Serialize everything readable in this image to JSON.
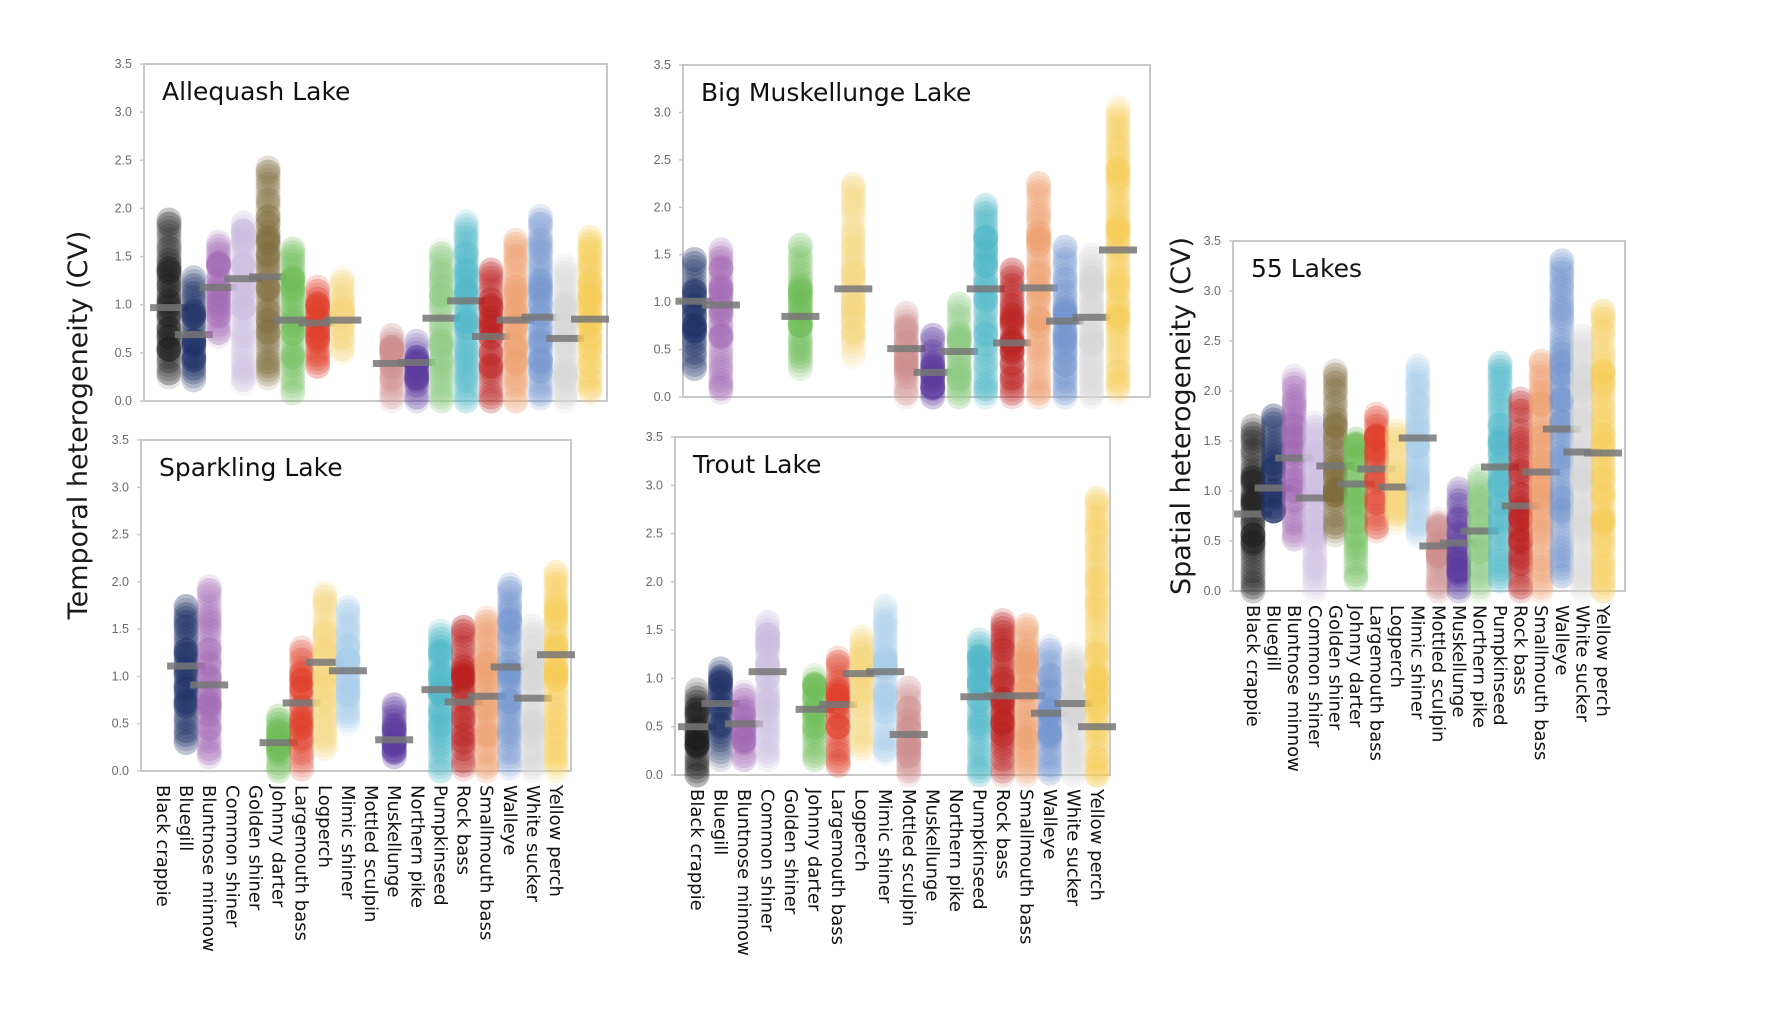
{
  "chart_data": [
    {
      "type": "scatter",
      "subtype": "strip-plot-with-mean-bars",
      "title": "Allequash Lake",
      "ylabel": "Temporal heterogeneity (CV)",
      "ylim": [
        0,
        3.5
      ],
      "yticks": [
        "0.0",
        "0.5",
        "1.0",
        "1.5",
        "2.0",
        "2.5",
        "3.0",
        "3.5"
      ],
      "categories": [
        "Black crappie",
        "Bluegill",
        "Bluntnose minnow",
        "Common shiner",
        "Golden shiner",
        "Johnny darter",
        "Largemouth bass",
        "Logperch",
        "Mimic shiner",
        "Mottled sculpin",
        "Muskellunge",
        "Northern pike",
        "Pumpkinseed",
        "Rock bass",
        "Smallmouth bass",
        "Walleye",
        "White sucker",
        "Yellow perch"
      ],
      "series": [
        {
          "name": "Black crappie",
          "min": 0.25,
          "max": 1.88,
          "mean": 0.97
        },
        {
          "name": "Bluegill",
          "min": 0.22,
          "max": 1.28,
          "mean": 0.69
        },
        {
          "name": "Bluntnose minnow",
          "min": 0.67,
          "max": 1.65,
          "mean": 1.18
        },
        {
          "name": "Common shiner",
          "min": 0.18,
          "max": 1.85,
          "mean": 1.27
        },
        {
          "name": "Golden shiner",
          "min": 0.24,
          "max": 2.42,
          "mean": 1.29
        },
        {
          "name": "Johnny darter",
          "min": 0.08,
          "max": 1.58,
          "mean": 0.84
        },
        {
          "name": "Largemouth bass",
          "min": 0.36,
          "max": 1.18,
          "mean": 0.81
        },
        {
          "name": "Logperch",
          "min": 0.5,
          "max": 1.28,
          "mean": 0.84
        },
        {
          "name": "Mimic shiner",
          "min": null,
          "max": null,
          "mean": null
        },
        {
          "name": "Mottled sculpin",
          "min": 0.0,
          "max": 0.68,
          "mean": 0.39
        },
        {
          "name": "Muskellunge",
          "min": 0.0,
          "max": 0.62,
          "mean": 0.4
        },
        {
          "name": "Northern pike",
          "min": 0.0,
          "max": 1.57,
          "mean": 0.86
        },
        {
          "name": "Pumpkinseed",
          "min": 0.0,
          "max": 1.86,
          "mean": 1.04
        },
        {
          "name": "Rock bass",
          "min": 0.0,
          "max": 1.36,
          "mean": 0.67
        },
        {
          "name": "Smallmouth bass",
          "min": 0.0,
          "max": 1.67,
          "mean": 0.84
        },
        {
          "name": "Walleye",
          "min": 0.03,
          "max": 1.92,
          "mean": 0.87
        },
        {
          "name": "White sucker",
          "min": 0.0,
          "max": 1.41,
          "mean": 0.65
        },
        {
          "name": "Yellow perch",
          "min": 0.1,
          "max": 1.7,
          "mean": 0.85
        }
      ]
    },
    {
      "type": "scatter",
      "subtype": "strip-plot-with-mean-bars",
      "title": "Big Muskellunge Lake",
      "ylim": [
        0,
        3.5
      ],
      "yticks": [
        "0.0",
        "0.5",
        "1.0",
        "1.5",
        "2.0",
        "2.5",
        "3.0",
        "3.5"
      ],
      "categories": [
        "Black crappie",
        "Bluegill",
        "Bluntnose minnow",
        "Common shiner",
        "Golden shiner",
        "Johnny darter",
        "Largemouth bass",
        "Logperch",
        "Mimic shiner",
        "Mottled sculpin",
        "Muskellunge",
        "Northern pike",
        "Pumpkinseed",
        "Rock bass",
        "Smallmouth bass",
        "Walleye",
        "White sucker",
        "Yellow perch"
      ],
      "series": [
        {
          "name": "Black crappie",
          "min": null,
          "max": null,
          "mean": null
        },
        {
          "name": "Bluegill",
          "min": 0.3,
          "max": 1.45,
          "mean": 1.01
        },
        {
          "name": "Bluntnose minnow",
          "min": 0.05,
          "max": 1.55,
          "mean": 0.97
        },
        {
          "name": "Common shiner",
          "min": null,
          "max": null,
          "mean": null
        },
        {
          "name": "Golden shiner",
          "min": null,
          "max": null,
          "mean": null
        },
        {
          "name": "Johnny darter",
          "min": 0.3,
          "max": 1.6,
          "mean": 0.85
        },
        {
          "name": "Largemouth bass",
          "min": null,
          "max": null,
          "mean": null
        },
        {
          "name": "Logperch",
          "min": 0.42,
          "max": 2.24,
          "mean": 1.14
        },
        {
          "name": "Mimic shiner",
          "min": null,
          "max": null,
          "mean": null
        },
        {
          "name": "Mottled sculpin",
          "min": 0.0,
          "max": 0.88,
          "mean": 0.51
        },
        {
          "name": "Muskellunge",
          "min": 0.0,
          "max": 0.65,
          "mean": 0.26
        },
        {
          "name": "Northern pike",
          "min": 0.0,
          "max": 0.98,
          "mean": 0.48
        },
        {
          "name": "Pumpkinseed",
          "min": 0.0,
          "max": 2.02,
          "mean": 1.14
        },
        {
          "name": "Rock bass",
          "min": 0.0,
          "max": 1.34,
          "mean": 0.57
        },
        {
          "name": "Smallmouth bass",
          "min": 0.0,
          "max": 2.25,
          "mean": 1.15
        },
        {
          "name": "Walleye",
          "min": 0.0,
          "max": 1.58,
          "mean": 0.8
        },
        {
          "name": "White sucker",
          "min": 0.0,
          "max": 1.5,
          "mean": 0.84
        },
        {
          "name": "Yellow perch",
          "min": 0.05,
          "max": 3.05,
          "mean": 1.55
        }
      ]
    },
    {
      "type": "scatter",
      "subtype": "strip-plot-with-mean-bars",
      "title": "Sparkling Lake",
      "ylim": [
        0,
        3.5
      ],
      "yticks": [
        "0.0",
        "0.5",
        "1.0",
        "1.5",
        "2.0",
        "2.5",
        "3.0",
        "3.5"
      ],
      "categories": [
        "Black crappie",
        "Bluegill",
        "Bluntnose minnow",
        "Common shiner",
        "Golden shiner",
        "Johnny darter",
        "Largemouth bass",
        "Logperch",
        "Mimic shiner",
        "Mottled sculpin",
        "Muskellunge",
        "Northern pike",
        "Pumpkinseed",
        "Rock bass",
        "Smallmouth bass",
        "Walleye",
        "White sucker",
        "Yellow perch"
      ],
      "series": [
        {
          "name": "Black crappie",
          "min": null,
          "max": null,
          "mean": null
        },
        {
          "name": "Bluegill",
          "min": 0.3,
          "max": 1.74,
          "mean": 1.11
        },
        {
          "name": "Bluntnose minnow",
          "min": 0.15,
          "max": 1.95,
          "mean": 0.91
        },
        {
          "name": "Common shiner",
          "min": null,
          "max": null,
          "mean": null
        },
        {
          "name": "Golden shiner",
          "min": null,
          "max": null,
          "mean": null
        },
        {
          "name": "Johnny darter",
          "min": 0.0,
          "max": 0.58,
          "mean": 0.3
        },
        {
          "name": "Largemouth bass",
          "min": 0.02,
          "max": 1.3,
          "mean": 0.72
        },
        {
          "name": "Logperch",
          "min": 0.24,
          "max": 1.88,
          "mean": 1.15
        },
        {
          "name": "Mimic shiner",
          "min": 0.5,
          "max": 1.73,
          "mean": 1.06
        },
        {
          "name": "Mottled sculpin",
          "min": null,
          "max": null,
          "mean": null
        },
        {
          "name": "Muskellunge",
          "min": 0.15,
          "max": 0.7,
          "mean": 0.33
        },
        {
          "name": "Northern pike",
          "min": null,
          "max": null,
          "mean": null
        },
        {
          "name": "Pumpkinseed",
          "min": 0.0,
          "max": 1.48,
          "mean": 0.86
        },
        {
          "name": "Rock bass",
          "min": 0.02,
          "max": 1.52,
          "mean": 0.73
        },
        {
          "name": "Smallmouth bass",
          "min": 0.0,
          "max": 1.62,
          "mean": 0.79
        },
        {
          "name": "Walleye",
          "min": 0.03,
          "max": 1.97,
          "mean": 1.1
        },
        {
          "name": "White sucker",
          "min": 0.0,
          "max": 1.53,
          "mean": 0.77
        },
        {
          "name": "Yellow perch",
          "min": 0.0,
          "max": 2.1,
          "mean": 1.23
        }
      ]
    },
    {
      "type": "scatter",
      "subtype": "strip-plot-with-mean-bars",
      "title": "Trout Lake",
      "ylim": [
        0,
        3.5
      ],
      "yticks": [
        "0.0",
        "0.5",
        "1.0",
        "1.5",
        "2.0",
        "2.5",
        "3.0",
        "3.5"
      ],
      "categories": [
        "Black crappie",
        "Bluegill",
        "Bluntnose minnow",
        "Common shiner",
        "Golden shiner",
        "Johnny darter",
        "Largemouth bass",
        "Logperch",
        "Mimic shiner",
        "Mottled sculpin",
        "Muskellunge",
        "Northern pike",
        "Pumpkinseed",
        "Rock bass",
        "Smallmouth bass",
        "Walleye",
        "White sucker",
        "Yellow perch"
      ],
      "series": [
        {
          "name": "Black crappie",
          "min": 0.0,
          "max": 0.88,
          "mean": 0.5
        },
        {
          "name": "Bluegill",
          "min": 0.16,
          "max": 1.1,
          "mean": 0.74
        },
        {
          "name": "Bluntnose minnow",
          "min": 0.16,
          "max": 0.86,
          "mean": 0.53
        },
        {
          "name": "Common shiner",
          "min": 0.16,
          "max": 1.58,
          "mean": 1.07
        },
        {
          "name": "Golden shiner",
          "min": null,
          "max": null,
          "mean": null
        },
        {
          "name": "Johnny darter",
          "min": 0.16,
          "max": 1.03,
          "mean": 0.68
        },
        {
          "name": "Largemouth bass",
          "min": 0.1,
          "max": 1.21,
          "mean": 0.73
        },
        {
          "name": "Logperch",
          "min": 0.27,
          "max": 1.43,
          "mean": 1.05
        },
        {
          "name": "Mimic shiner",
          "min": 0.22,
          "max": 1.75,
          "mean": 1.07
        },
        {
          "name": "Mottled sculpin",
          "min": 0.0,
          "max": 0.9,
          "mean": 0.42
        },
        {
          "name": "Muskellunge",
          "min": null,
          "max": null,
          "mean": null
        },
        {
          "name": "Northern pike",
          "min": null,
          "max": null,
          "mean": null
        },
        {
          "name": "Pumpkinseed",
          "min": 0.0,
          "max": 1.4,
          "mean": 0.81
        },
        {
          "name": "Rock bass",
          "min": 0.0,
          "max": 1.6,
          "mean": 0.82
        },
        {
          "name": "Smallmouth bass",
          "min": 0.0,
          "max": 1.55,
          "mean": 0.82
        },
        {
          "name": "Walleye",
          "min": 0.02,
          "max": 1.33,
          "mean": 0.64
        },
        {
          "name": "White sucker",
          "min": 0.0,
          "max": 1.25,
          "mean": 0.74
        },
        {
          "name": "Yellow perch",
          "min": 0.0,
          "max": 2.87,
          "mean": 0.5
        }
      ]
    },
    {
      "type": "scatter",
      "subtype": "strip-plot-with-mean-bars",
      "title": "55 Lakes",
      "ylabel": "Spatial heterogeneity (CV)",
      "ylim": [
        0,
        3.5
      ],
      "yticks": [
        "0.0",
        "0.5",
        "1.0",
        "1.5",
        "2.0",
        "2.5",
        "3.0",
        "3.5"
      ],
      "categories": [
        "Black crappie",
        "Bluegill",
        "Bluntnose minnow",
        "Common shiner",
        "Golden shiner",
        "Johnny darter",
        "Largemouth bass",
        "Logperch",
        "Mimic shiner",
        "Mottled sculpin",
        "Muskellunge",
        "Northern pike",
        "Pumpkinseed",
        "Rock bass",
        "Smallmouth bass",
        "Walleye",
        "White sucker",
        "Yellow perch"
      ],
      "series": [
        {
          "name": "Black crappie",
          "min": 0.0,
          "max": 1.65,
          "mean": 0.77
        },
        {
          "name": "Bluegill",
          "min": 0.8,
          "max": 1.75,
          "mean": 1.03
        },
        {
          "name": "Bluntnose minnow",
          "min": 0.52,
          "max": 2.15,
          "mean": 1.33
        },
        {
          "name": "Common shiner",
          "min": 0.0,
          "max": 1.68,
          "mean": 0.93
        },
        {
          "name": "Golden shiner",
          "min": 0.56,
          "max": 2.2,
          "mean": 1.25
        },
        {
          "name": "Johnny darter",
          "min": 0.12,
          "max": 1.52,
          "mean": 1.07
        },
        {
          "name": "Largemouth bass",
          "min": 0.6,
          "max": 1.77,
          "mean": 1.22
        },
        {
          "name": "Logperch",
          "min": 0.68,
          "max": 1.6,
          "mean": 1.04
        },
        {
          "name": "Mimic shiner",
          "min": 0.55,
          "max": 2.25,
          "mean": 1.53
        },
        {
          "name": "Mottled sculpin",
          "min": 0.0,
          "max": 0.72,
          "mean": 0.45
        },
        {
          "name": "Muskellunge",
          "min": 0.0,
          "max": 1.02,
          "mean": 0.48
        },
        {
          "name": "Northern pike",
          "min": 0.0,
          "max": 1.15,
          "mean": 0.6
        },
        {
          "name": "Pumpkinseed",
          "min": 0.1,
          "max": 2.28,
          "mean": 1.24
        },
        {
          "name": "Rock bass",
          "min": 0.0,
          "max": 1.92,
          "mean": 0.85
        },
        {
          "name": "Smallmouth bass",
          "min": 0.0,
          "max": 2.3,
          "mean": 1.19
        },
        {
          "name": "Walleye",
          "min": 0.15,
          "max": 3.3,
          "mean": 1.62
        },
        {
          "name": "White sucker",
          "min": 0.0,
          "max": 2.55,
          "mean": 1.39
        },
        {
          "name": "Yellow perch",
          "min": 0.0,
          "max": 2.8,
          "mean": 1.38
        }
      ]
    }
  ],
  "species_colors": {
    "Black crappie": "#1e1e1e",
    "Bluegill": "#1f3266",
    "Bluntnose minnow": "#a46bb5",
    "Common shiner": "#cbbde0",
    "Golden shiner": "#7d6a3a",
    "Johnny darter": "#6fbe5a",
    "Largemouth bass": "#e0402a",
    "Logperch": "#f5d880",
    "Mimic shiner": "#a8cdea",
    "Mottled sculpin": "#cf8f8f",
    "Muskellunge": "#5b3b9e",
    "Northern pike": "#8fcc85",
    "Pumpkinseed": "#50b8c8",
    "Rock bass": "#bb2020",
    "Smallmouth bass": "#eea070",
    "Walleye": "#7395cf",
    "White sucker": "#d8d8d8",
    "Yellow perch": "#f6cc55"
  },
  "mean_bar_color": "#777777",
  "left_ylabel": "Temporal heterogeneity (CV)",
  "right_ylabel": "Spatial heterogeneity (CV)"
}
